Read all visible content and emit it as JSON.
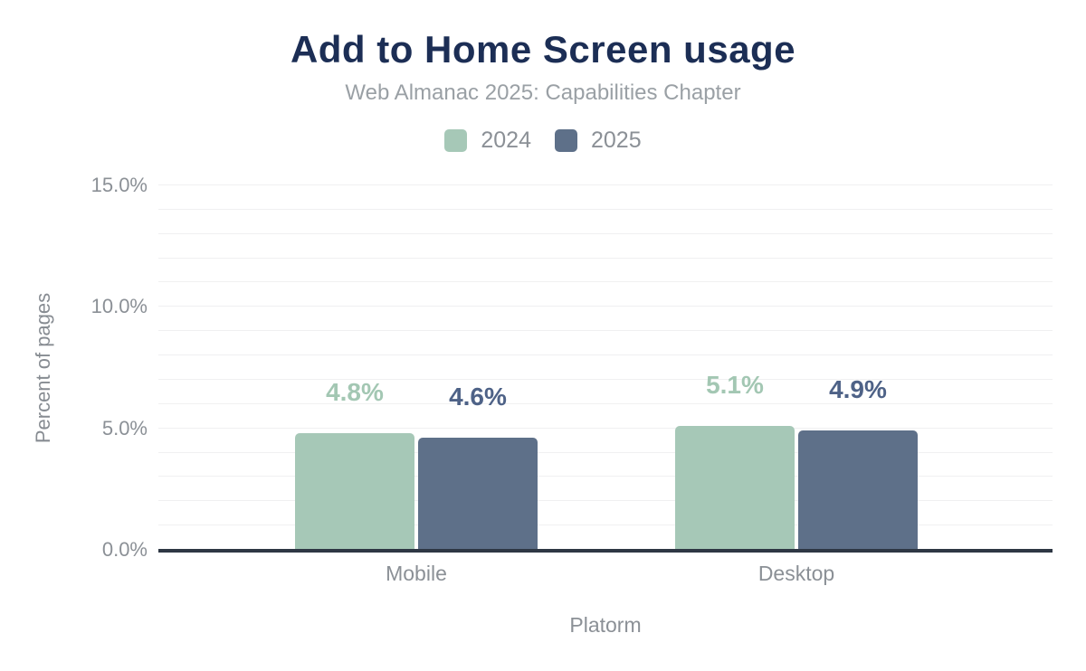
{
  "header": {
    "title": "Add to Home Screen usage",
    "subtitle": "Web Almanac 2025: Capabilities Chapter"
  },
  "legend": {
    "items": [
      {
        "label": "2024",
        "color": "#a6c8b7"
      },
      {
        "label": "2025",
        "color": "#5e7089"
      }
    ]
  },
  "chart_data": {
    "type": "bar",
    "title": "Add to Home Screen usage",
    "subtitle": "Web Almanac 2025: Capabilities Chapter",
    "categories": [
      "Mobile",
      "Desktop"
    ],
    "series": [
      {
        "name": "2024",
        "color": "#a6c8b7",
        "label_color": "#a3c7b3",
        "values": [
          4.8,
          5.1
        ],
        "value_labels": [
          "4.8%",
          "5.1%"
        ]
      },
      {
        "name": "2025",
        "color": "#5e7089",
        "label_color": "#4e6287",
        "values": [
          4.6,
          4.9
        ],
        "value_labels": [
          "4.6%",
          "4.9%"
        ]
      }
    ],
    "xlabel": "Platorm",
    "ylabel": "Percent of pages",
    "ylim": [
      0,
      15
    ],
    "yticks": [
      {
        "value": 0,
        "label": "0.0%"
      },
      {
        "value": 5,
        "label": "5.0%"
      },
      {
        "value": 10,
        "label": "10.0%"
      },
      {
        "value": 15,
        "label": "15.0%"
      }
    ],
    "grid_step": 1,
    "grid": true,
    "legend_position": "top",
    "colors": {
      "title": "#1c2e55",
      "subtitle": "#9aa0a5",
      "axis_text": "#8b9096",
      "gridline": "#f0f0f1",
      "axis_line": "#2e3744",
      "background": "#ffffff"
    }
  }
}
